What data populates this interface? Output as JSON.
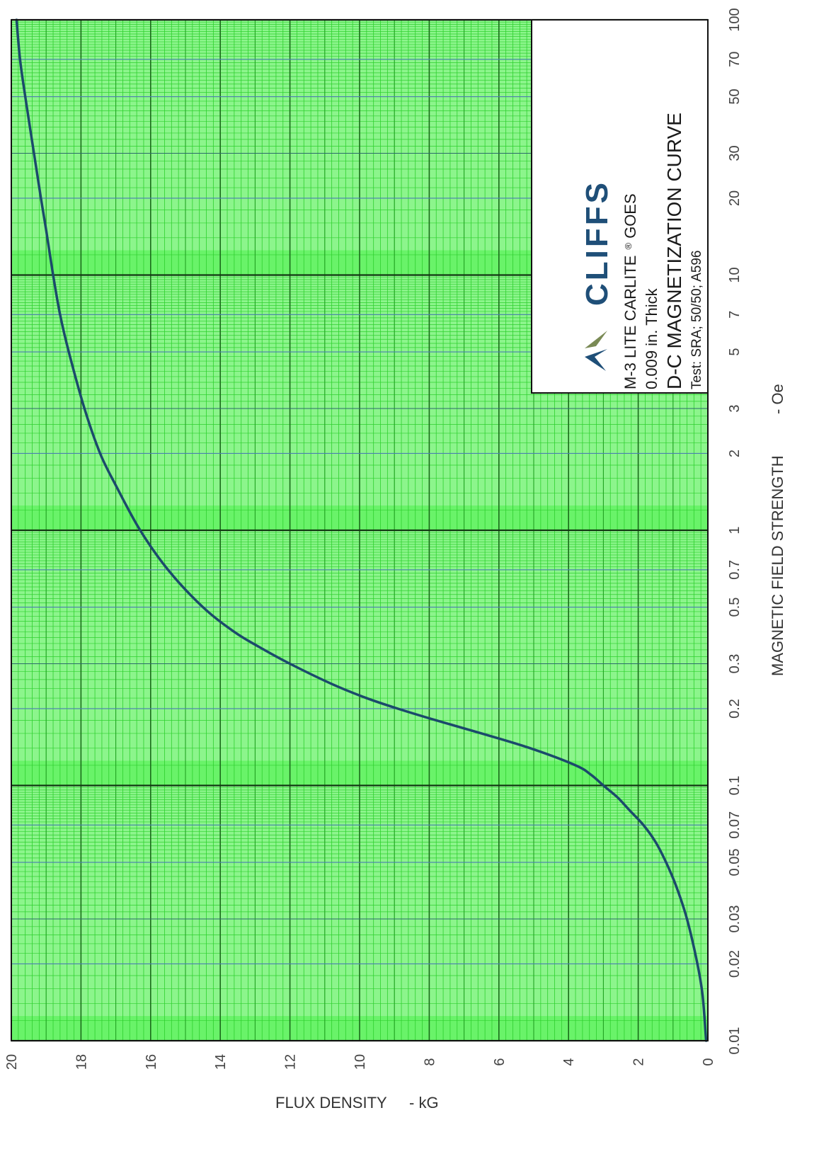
{
  "chart_data": {
    "type": "line",
    "title": "D-C MAGNETIZATION CURVE",
    "brand": "CLIFFS",
    "product": {
      "name": "M-3 LITE  CARLITE",
      "registered_mark": "®",
      "grade": "GOES"
    },
    "thickness": "0.009 in. Thick",
    "test": "Test: SRA; 50/50; A596",
    "xlabel": "MAGNETIC FIELD STRENGTH",
    "xunit": "- Oe",
    "ylabel": "FLUX DENSITY",
    "yunit": "- kG",
    "x_scale": "log",
    "xlim": [
      0.01,
      100
    ],
    "ylim": [
      0,
      20
    ],
    "x_ticks": [
      "0.01",
      "0.02",
      "0.03",
      "0.05",
      "0.07",
      "0.1",
      "0.2",
      "0.3",
      "0.5",
      "0.7",
      "1",
      "2",
      "3",
      "5",
      "7",
      "10",
      "20",
      "30",
      "50",
      "70",
      "100"
    ],
    "y_ticks": [
      "0",
      "2",
      "4",
      "6",
      "8",
      "10",
      "12",
      "14",
      "16",
      "18",
      "20"
    ],
    "grid": true,
    "orientation": "rotated-90-clockwise",
    "series": [
      {
        "color": "#1b4a6b",
        "x": [
          0.01,
          0.015,
          0.02,
          0.03,
          0.04,
          0.05,
          0.06,
          0.07,
          0.08,
          0.09,
          0.1,
          0.11,
          0.12,
          0.14,
          0.16,
          0.18,
          0.2,
          0.22,
          0.25,
          0.3,
          0.35,
          0.4,
          0.5,
          0.7,
          1,
          1.5,
          2,
          3,
          5,
          7,
          10,
          15,
          20,
          30,
          50,
          70,
          100
        ],
        "y": [
          0.05,
          0.15,
          0.3,
          0.6,
          0.9,
          1.2,
          1.5,
          1.85,
          2.25,
          2.6,
          3.0,
          3.35,
          3.8,
          5.1,
          6.5,
          7.8,
          8.9,
          9.8,
          10.8,
          12.0,
          12.9,
          13.6,
          14.5,
          15.5,
          16.3,
          17.0,
          17.45,
          17.9,
          18.35,
          18.6,
          18.8,
          19.0,
          19.15,
          19.35,
          19.6,
          19.75,
          19.85
        ]
      }
    ],
    "legend_box": "top-right"
  }
}
